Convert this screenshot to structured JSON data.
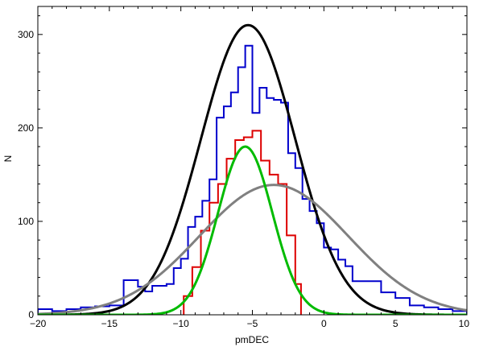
{
  "chart_data": {
    "type": "line",
    "xlabel": "pmDEC",
    "ylabel": "N",
    "xlim": [
      -20,
      10
    ],
    "ylim": [
      0,
      330
    ],
    "x_major_ticks": [
      -20,
      -15,
      -10,
      -5,
      0,
      5,
      10
    ],
    "y_major_ticks": [
      0,
      100,
      200,
      300
    ],
    "x_tick_labels": [
      "−20",
      "−15",
      "−10",
      "−5",
      "0",
      "5",
      "10"
    ],
    "y_tick_labels": [
      "0",
      "100",
      "200",
      "300"
    ],
    "grid": false,
    "legend": "none",
    "histograms": [
      {
        "color": "#0000cc",
        "bin_edges": [
          -20,
          -19,
          -18,
          -17,
          -16,
          -15,
          -14,
          -13,
          -12.5,
          -12,
          -11,
          -10.5,
          -10,
          -9.5,
          -9,
          -8.5,
          -8,
          -7.5,
          -7,
          -6.5,
          -6,
          -5.5,
          -5,
          -4.5,
          -4,
          -3.5,
          -3,
          -2.5,
          -2,
          -1.5,
          -1,
          -0.5,
          0,
          0.5,
          1,
          1.5,
          2,
          3,
          4,
          5,
          6,
          7,
          8,
          9,
          10
        ],
        "counts": [
          6,
          4,
          6,
          8,
          9,
          10,
          37,
          30,
          25,
          31,
          33,
          50,
          60,
          94,
          105,
          122,
          145,
          211,
          223,
          238,
          265,
          288,
          216,
          243,
          232,
          230,
          227,
          173,
          157,
          124,
          111,
          98,
          72,
          70,
          59,
          52,
          36,
          36,
          24,
          18,
          10,
          8,
          6,
          4
        ]
      },
      {
        "color": "#dd0000",
        "bin_edges": [
          -9.8,
          -9.2,
          -8.6,
          -8.0,
          -7.4,
          -6.8,
          -6.2,
          -5.6,
          -5.0,
          -4.4,
          -3.8,
          -3.2,
          -2.6,
          -2.0,
          -1.6
        ],
        "counts": [
          20,
          51,
          90,
          120,
          140,
          167,
          187,
          190,
          197,
          165,
          150,
          140,
          85,
          33
        ]
      }
    ],
    "curves": [
      {
        "color": "#000000",
        "shape": "gaussian",
        "amplitude": 310,
        "mean": -5.3,
        "sigma": 3.3,
        "x_range": [
          -20,
          10
        ]
      },
      {
        "color": "#808080",
        "shape": "gaussian",
        "amplitude": 139,
        "mean": -3.5,
        "sigma": 5.2,
        "x_range": [
          -20,
          10
        ]
      },
      {
        "color": "#00bb00",
        "shape": "gaussian",
        "amplitude": 180,
        "mean": -5.5,
        "sigma": 1.9,
        "x_range": [
          -20,
          10
        ]
      }
    ]
  }
}
